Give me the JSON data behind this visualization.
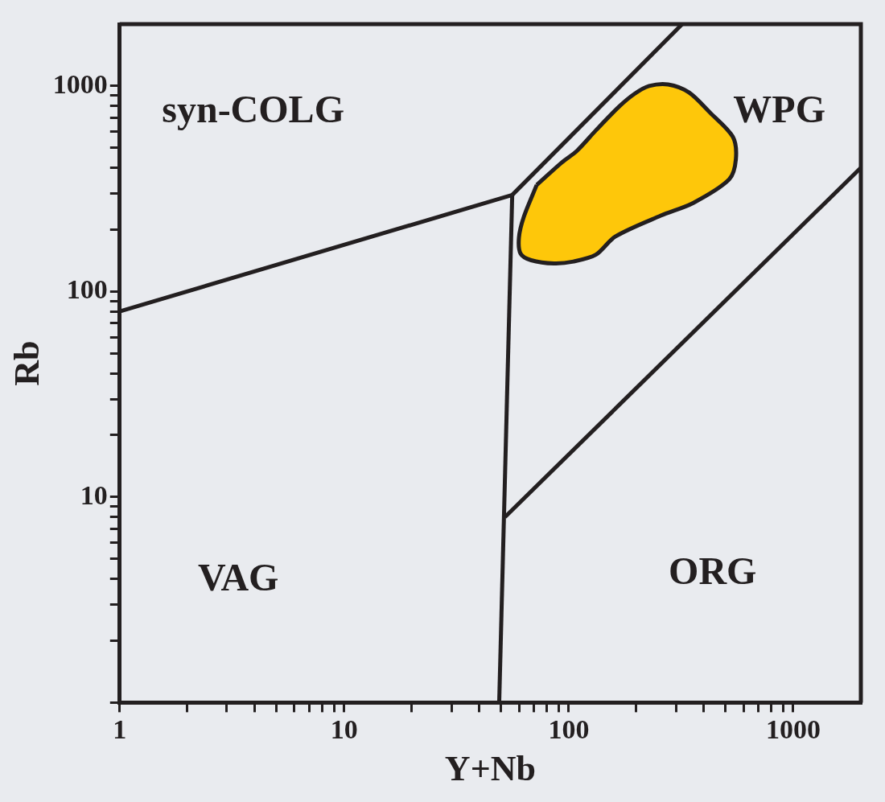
{
  "chart_data": {
    "type": "line",
    "xlabel": "Y+Nb",
    "ylabel": "Rb",
    "log": "xy",
    "grid": false,
    "legend": false,
    "marker": "none",
    "line_style": "solid",
    "xlim": [
      1,
      2000
    ],
    "ylim": [
      1,
      2000
    ],
    "xticks": [
      1,
      {
        "value": 2,
        "label": null
      },
      {
        "value": 3,
        "label": null
      },
      {
        "value": 4,
        "label": null
      },
      {
        "value": 5,
        "label": null
      },
      {
        "value": 6,
        "label": null
      },
      {
        "value": 7,
        "label": null
      },
      {
        "value": 8,
        "label": null
      },
      {
        "value": 9,
        "label": null
      },
      10,
      {
        "value": 20,
        "label": null
      },
      {
        "value": 30,
        "label": null
      },
      {
        "value": 40,
        "label": null
      },
      {
        "value": 50,
        "label": null
      },
      {
        "value": 60,
        "label": null
      },
      {
        "value": 70,
        "label": null
      },
      {
        "value": 80,
        "label": null
      },
      {
        "value": 90,
        "label": null
      },
      100,
      {
        "value": 200,
        "label": null
      },
      {
        "value": 300,
        "label": null
      },
      {
        "value": 400,
        "label": null
      },
      {
        "value": 500,
        "label": null
      },
      {
        "value": 600,
        "label": null
      },
      {
        "value": 700,
        "label": null
      },
      {
        "value": 800,
        "label": null
      },
      {
        "value": 900,
        "label": null
      },
      1000
    ],
    "yticks": [
      {
        "value": 1,
        "label": null
      },
      {
        "value": 2,
        "label": null
      },
      {
        "value": 3,
        "label": null
      },
      {
        "value": 4,
        "label": null
      },
      {
        "value": 5,
        "label": null
      },
      {
        "value": 6,
        "label": null
      },
      {
        "value": 7,
        "label": null
      },
      {
        "value": 8,
        "label": null
      },
      {
        "value": 9,
        "label": null
      },
      10,
      {
        "value": 20,
        "label": null
      },
      {
        "value": 30,
        "label": null
      },
      {
        "value": 40,
        "label": null
      },
      {
        "value": 50,
        "label": null
      },
      {
        "value": 60,
        "label": null
      },
      {
        "value": 70,
        "label": null
      },
      {
        "value": 80,
        "label": null
      },
      {
        "value": 90,
        "label": null
      },
      100,
      {
        "value": 200,
        "label": null
      },
      {
        "value": 300,
        "label": null
      },
      {
        "value": 400,
        "label": null
      },
      {
        "value": 500,
        "label": null
      },
      {
        "value": 600,
        "label": null
      },
      {
        "value": 700,
        "label": null
      },
      {
        "value": 800,
        "label": null
      },
      {
        "value": 900,
        "label": null
      },
      1000
    ],
    "series": [
      {
        "type": "area",
        "color": "#fec70a",
        "x": [
          72,
          93,
          109,
          132,
          167,
          196,
          228,
          277,
          343,
          426,
          538,
          555,
          518,
          359,
          257,
          161,
          132,
          105,
          86,
          68,
          61,
          60,
          63
        ],
        "values": [
          330,
          424,
          485,
          608,
          791,
          915,
          1000,
          1018,
          931,
          742,
          566,
          440,
          351,
          270,
          234,
          185,
          151,
          140,
          137,
          142,
          153,
          183,
          230
        ]
      },
      {
        "color": "#231f20",
        "x": [
          1,
          56
        ],
        "values": [
          80,
          295
        ]
      },
      {
        "color": "#231f20",
        "x": [
          56,
          320
        ],
        "values": [
          295,
          2000
        ]
      },
      {
        "color": "#231f20",
        "x": [
          56,
          49
        ],
        "values": [
          295,
          1
        ]
      },
      {
        "color": "#231f20",
        "x": [
          52,
          2000
        ],
        "values": [
          8,
          400
        ]
      }
    ],
    "annotations": [
      "syn-COLG",
      "WPG",
      "VAG",
      "ORG"
    ]
  }
}
